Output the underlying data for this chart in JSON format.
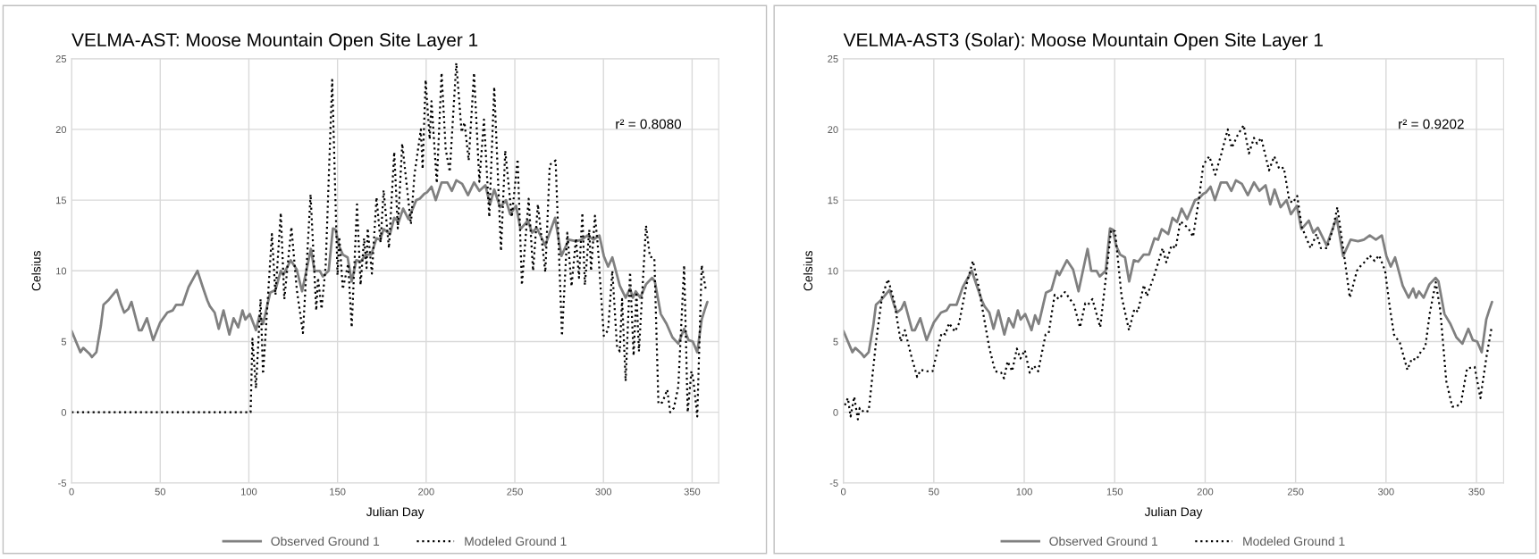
{
  "chart_data": [
    {
      "type": "line",
      "title": "VELMA-AST: Moose Mountain Open Site Layer 1",
      "xlabel": "Julian Day",
      "ylabel": "Celsius",
      "annotations": [
        "r² = 0.8080"
      ],
      "xlim": [
        0,
        365
      ],
      "xticks": [
        0,
        50,
        100,
        150,
        200,
        250,
        300,
        350
      ],
      "ylim": [
        -5,
        25
      ],
      "yticks": [
        -5,
        0,
        5,
        10,
        15,
        20,
        25
      ],
      "grid": true,
      "legend": "bottom",
      "marker": "none",
      "series": [
        {
          "name": "Observed Ground 1",
          "color": "#808080",
          "line_style": "solid",
          "x": [
            0,
            5,
            6.6,
            10,
            11.5,
            14,
            16.5,
            18,
            20.6,
            25.5,
            28,
            29.7,
            32,
            33.8,
            38,
            39.5,
            42.5,
            46,
            50,
            54,
            57,
            59,
            62.6,
            66,
            71,
            74,
            76.6,
            78,
            80.7,
            83,
            85.7,
            89,
            91.4,
            94,
            96.4,
            98,
            100.5,
            104,
            106,
            108,
            112,
            115,
            118,
            119.4,
            123.6,
            127,
            130,
            135,
            137,
            140,
            141.7,
            145,
            147.4,
            149,
            150.7,
            153,
            155.7,
            158,
            160.6,
            163,
            166,
            169,
            172,
            174,
            176,
            179.6,
            182,
            184.5,
            187,
            190,
            194.4,
            196.4,
            199,
            200.5,
            203,
            205.4,
            208.7,
            212,
            214.5,
            217,
            220.3,
            223.6,
            227,
            230,
            233.4,
            236,
            238.4,
            241.7,
            245,
            247.4,
            250.7,
            253.2,
            257.3,
            259.8,
            262.3,
            267.2,
            269.7,
            272.7,
            276.3,
            280.4,
            284.5,
            287.8,
            291,
            294.4,
            297.7,
            300.2,
            302.6,
            305,
            309.2,
            312.5,
            315,
            316.6,
            318.2,
            320.8,
            324,
            327.4,
            329,
            332.3,
            335.6,
            338.9,
            342.2,
            345.5,
            348,
            350.4,
            352.9,
            355.4,
            357,
            358.6
          ],
          "values": [
            5.75,
            4.25,
            4.55,
            4.15,
            3.9,
            4.25,
            6.1,
            7.6,
            7.9,
            8.65,
            7.6,
            7.05,
            7.3,
            7.8,
            5.8,
            5.8,
            6.65,
            5.1,
            6.35,
            7.05,
            7.2,
            7.6,
            7.6,
            8.85,
            10.0,
            8.85,
            7.9,
            7.5,
            7.05,
            5.9,
            7.2,
            5.5,
            6.65,
            6.0,
            7.2,
            6.55,
            6.95,
            5.8,
            6.85,
            6.25,
            8.45,
            8.65,
            10.0,
            9.7,
            10.75,
            10.1,
            8.55,
            11.55,
            10.0,
            10.0,
            9.6,
            10.0,
            13.0,
            12.9,
            11.8,
            11.15,
            10.95,
            9.25,
            10.75,
            10.65,
            11.15,
            11.15,
            12.3,
            12.2,
            12.95,
            12.6,
            13.75,
            13.45,
            14.4,
            13.65,
            15.0,
            15.1,
            15.45,
            15.55,
            15.95,
            15.0,
            16.25,
            16.25,
            15.65,
            16.4,
            16.15,
            15.35,
            16.25,
            15.65,
            16.05,
            14.7,
            15.75,
            14.5,
            15.0,
            14.0,
            14.6,
            12.95,
            13.55,
            12.7,
            13.05,
            11.8,
            12.7,
            13.75,
            11.05,
            12.2,
            12.1,
            12.2,
            12.5,
            12.2,
            12.5,
            11.05,
            10.3,
            10.95,
            8.95,
            8.1,
            8.75,
            8.1,
            8.55,
            8.1,
            9.05,
            9.5,
            9.25,
            6.95,
            6.25,
            5.3,
            4.85,
            5.9,
            5.1,
            5.0,
            4.25,
            6.55,
            7.2,
            7.8
          ]
        },
        {
          "name": "Modeled Ground 1",
          "color": "#000000",
          "line_style": "dotted",
          "x": [
            0,
            101,
            102,
            104,
            106.6,
            108,
            113,
            115,
            118,
            120,
            124,
            127,
            130.5,
            134.8,
            138,
            139,
            141,
            143.3,
            147,
            150,
            151,
            153,
            156,
            158,
            161,
            163,
            165,
            166.4,
            167,
            169.4,
            172,
            174.3,
            176,
            179,
            182,
            184,
            186.5,
            191.4,
            193.4,
            197,
            198,
            199.7,
            202,
            203,
            206,
            208.7,
            211,
            213.3,
            217,
            220,
            221.6,
            224,
            227,
            230,
            232.6,
            235.6,
            238.4,
            242.2,
            244.6,
            248.3,
            251.6,
            254,
            257.8,
            260.3,
            263,
            267.2,
            269.7,
            273,
            276.6,
            279.6,
            282,
            284.5,
            286.2,
            288.1,
            289.5,
            292,
            293,
            295.2,
            296.8,
            300.2,
            302.6,
            305,
            307.6,
            309.2,
            310.5,
            312.5,
            315,
            317,
            318.6,
            320,
            324,
            326.2,
            328.7,
            331,
            333.2,
            336,
            337.6,
            339.7,
            342.2,
            345.5,
            347.5,
            349.6,
            350.7,
            352.9,
            355.4,
            357.8
          ],
          "values": [
            0,
            0,
            5.2,
            1.7,
            8.0,
            2.7,
            12.6,
            8.3,
            14.1,
            8.0,
            13.1,
            8.7,
            5.6,
            15.4,
            7.2,
            9.5,
            7.3,
            10.3,
            23.5,
            9.7,
            12.4,
            8.7,
            10.5,
            6.0,
            14.7,
            9.0,
            12.3,
            10.2,
            13.0,
            9.8,
            15.2,
            12.0,
            15.7,
            11.6,
            18.4,
            13.0,
            19.0,
            13.3,
            16.8,
            20.0,
            17.2,
            23.5,
            19.3,
            22.0,
            16.2,
            24.0,
            18.6,
            17.0,
            24.7,
            19.8,
            20.5,
            17.8,
            24.0,
            16.3,
            20.7,
            13.8,
            23.0,
            11.4,
            18.5,
            13.8,
            17.9,
            9.0,
            15.1,
            10.0,
            14.7,
            9.9,
            17.5,
            17.8,
            5.4,
            12.7,
            8.9,
            12.3,
            9.5,
            14.1,
            9.0,
            12.9,
            10.0,
            13.9,
            11.8,
            5.4,
            5.8,
            10.0,
            4.7,
            4.3,
            8.0,
            2.2,
            9.9,
            4.0,
            8.5,
            4.3,
            13.2,
            11.0,
            10.9,
            0.6,
            0.7,
            1.6,
            0.0,
            0.3,
            1.8,
            10.4,
            0.0,
            2.9,
            2.3,
            -0.3,
            10.4,
            8.6
          ]
        }
      ]
    },
    {
      "type": "line",
      "title": "VELMA-AST3 (Solar): Moose Mountain Open Site Layer 1",
      "xlabel": "Julian Day",
      "ylabel": "Celsius",
      "annotations": [
        "r² = 0.9202"
      ],
      "xlim": [
        0,
        365
      ],
      "xticks": [
        0,
        50,
        100,
        150,
        200,
        250,
        300,
        350
      ],
      "ylim": [
        -5,
        25
      ],
      "yticks": [
        -5,
        0,
        5,
        10,
        15,
        20,
        25
      ],
      "grid": true,
      "legend": "bottom",
      "marker": "none",
      "series": [
        {
          "name": "Observed Ground 1",
          "color": "#808080",
          "line_style": "solid",
          "x": [
            0,
            5,
            6.6,
            10,
            11.5,
            14,
            16.5,
            18,
            20.6,
            25.5,
            28,
            29.7,
            32,
            33.8,
            38,
            39.5,
            42.5,
            46,
            50,
            54,
            57,
            59,
            62.6,
            66,
            71,
            74,
            76.6,
            78,
            80.7,
            83,
            85.7,
            89,
            91.4,
            94,
            96.4,
            98,
            100.5,
            104,
            106,
            108,
            112,
            115,
            118,
            119.4,
            123.6,
            127,
            130,
            135,
            137,
            140,
            141.7,
            145,
            147.4,
            149,
            150.7,
            153,
            155.7,
            158,
            160.6,
            163,
            166,
            169,
            172,
            174,
            176,
            179.6,
            182,
            184.5,
            187,
            190,
            194.4,
            196.4,
            199,
            200.5,
            203,
            205.4,
            208.7,
            212,
            214.5,
            217,
            220.3,
            223.6,
            227,
            230,
            233.4,
            236,
            238.4,
            241.7,
            245,
            247.4,
            250.7,
            253.2,
            257.3,
            259.8,
            262.3,
            267.2,
            269.7,
            272.7,
            276.3,
            280.4,
            284.5,
            287.8,
            291,
            294.4,
            297.7,
            300.2,
            302.6,
            305,
            309.2,
            312.5,
            315,
            316.6,
            318.2,
            320.8,
            324,
            327.4,
            329,
            332.3,
            335.6,
            338.9,
            342.2,
            345.5,
            348,
            350.4,
            352.9,
            355.4,
            357,
            358.6
          ],
          "values": [
            5.75,
            4.25,
            4.55,
            4.15,
            3.9,
            4.25,
            6.1,
            7.6,
            7.9,
            8.65,
            7.6,
            7.05,
            7.3,
            7.8,
            5.8,
            5.8,
            6.65,
            5.1,
            6.35,
            7.05,
            7.2,
            7.6,
            7.6,
            8.85,
            10.0,
            8.85,
            7.9,
            7.5,
            7.05,
            5.9,
            7.2,
            5.5,
            6.65,
            6.0,
            7.2,
            6.55,
            6.95,
            5.8,
            6.85,
            6.25,
            8.45,
            8.65,
            10.0,
            9.7,
            10.75,
            10.1,
            8.55,
            11.55,
            10.0,
            10.0,
            9.6,
            10.0,
            13.0,
            12.9,
            11.8,
            11.15,
            10.95,
            9.25,
            10.75,
            10.65,
            11.15,
            11.15,
            12.3,
            12.2,
            12.95,
            12.6,
            13.75,
            13.45,
            14.4,
            13.65,
            15.0,
            15.1,
            15.45,
            15.55,
            15.95,
            15.0,
            16.25,
            16.25,
            15.65,
            16.4,
            16.15,
            15.35,
            16.25,
            15.65,
            16.05,
            14.7,
            15.75,
            14.5,
            15.0,
            14.0,
            14.6,
            12.95,
            13.55,
            12.7,
            13.05,
            11.8,
            12.7,
            13.75,
            11.05,
            12.2,
            12.1,
            12.2,
            12.5,
            12.2,
            12.5,
            11.05,
            10.3,
            10.95,
            8.95,
            8.1,
            8.75,
            8.1,
            8.55,
            8.1,
            9.05,
            9.5,
            9.25,
            6.95,
            6.25,
            5.3,
            4.85,
            5.9,
            5.1,
            5.0,
            4.25,
            6.55,
            7.2,
            7.8
          ]
        },
        {
          "name": "Modeled Ground 1",
          "color": "#000000",
          "line_style": "dotted",
          "x": [
            0.8,
            2.5,
            4,
            6,
            8,
            9,
            11.5,
            14,
            18,
            21.4,
            24.7,
            28,
            31.7,
            34,
            37.5,
            40.8,
            42.8,
            46,
            49.3,
            54.3,
            56.4,
            58.4,
            61.7,
            64,
            68,
            71.6,
            74.8,
            77.3,
            80.6,
            83.9,
            87.2,
            88.8,
            90.8,
            93.3,
            95.9,
            97.9,
            100.3,
            103,
            105.3,
            107.7,
            111.8,
            113.5,
            116.8,
            119,
            122.5,
            127.5,
            130.8,
            133.7,
            135.2,
            137.7,
            142,
            146.4,
            148,
            150.2,
            153.8,
            157.9,
            160.9,
            162.8,
            166.1,
            167.8,
            171.9,
            176.5,
            178.5,
            181.4,
            183.7,
            186.3,
            190.8,
            193.3,
            196.5,
            199,
            202.3,
            205.6,
            209,
            212.5,
            214.7,
            218,
            221.3,
            224.2,
            227,
            228.7,
            231,
            235.3,
            238.2,
            241,
            243.5,
            246.5,
            248.4,
            250.9,
            253.4,
            258.3,
            261.6,
            264,
            267.4,
            270.7,
            273.1,
            276.4,
            280,
            283.9,
            286.3,
            288.8,
            290.9,
            293.7,
            296.2,
            299.5,
            302,
            304.4,
            307.7,
            311.8,
            314.3,
            316.8,
            319.3,
            321.7,
            324.2,
            327.5,
            330,
            333.3,
            336.6,
            339,
            341.5,
            344.8,
            349,
            352.2,
            355.5,
            358.5
          ],
          "values": [
            0.5,
            1.0,
            -0.3,
            1.1,
            -0.5,
            0.3,
            0.0,
            0.1,
            4.9,
            8.2,
            9.4,
            7.9,
            5.0,
            5.8,
            4.0,
            2.5,
            3.0,
            2.9,
            2.9,
            5.6,
            5.5,
            6.3,
            5.7,
            6.3,
            9.0,
            10.7,
            8.9,
            7.0,
            4.6,
            2.9,
            2.8,
            2.4,
            3.6,
            2.9,
            4.5,
            3.8,
            4.4,
            2.8,
            3.3,
            2.9,
            5.5,
            5.6,
            8.3,
            8.0,
            8.5,
            7.6,
            6.0,
            7.7,
            7.6,
            8.0,
            6.0,
            11.0,
            12.9,
            12.8,
            8.2,
            5.8,
            7.3,
            7.1,
            9.0,
            8.2,
            9.7,
            11.6,
            10.6,
            11.8,
            11.6,
            13.5,
            13.0,
            12.4,
            15.0,
            17.5,
            18.1,
            16.8,
            18.3,
            20.0,
            18.7,
            19.6,
            20.3,
            18.3,
            19.4,
            19.0,
            19.4,
            17.1,
            18.1,
            17.2,
            17.3,
            15.0,
            14.8,
            15.3,
            13.1,
            11.6,
            12.6,
            11.6,
            11.6,
            13.0,
            14.5,
            11.5,
            8.1,
            10.0,
            10.4,
            10.7,
            11.1,
            10.7,
            11.1,
            10.0,
            7.5,
            5.5,
            4.9,
            3.0,
            3.8,
            3.7,
            4.3,
            4.6,
            7.0,
            9.2,
            7.2,
            2.2,
            0.4,
            0.4,
            0.7,
            3.1,
            3.2,
            1.0,
            3.9,
            6.1
          ]
        }
      ]
    }
  ]
}
